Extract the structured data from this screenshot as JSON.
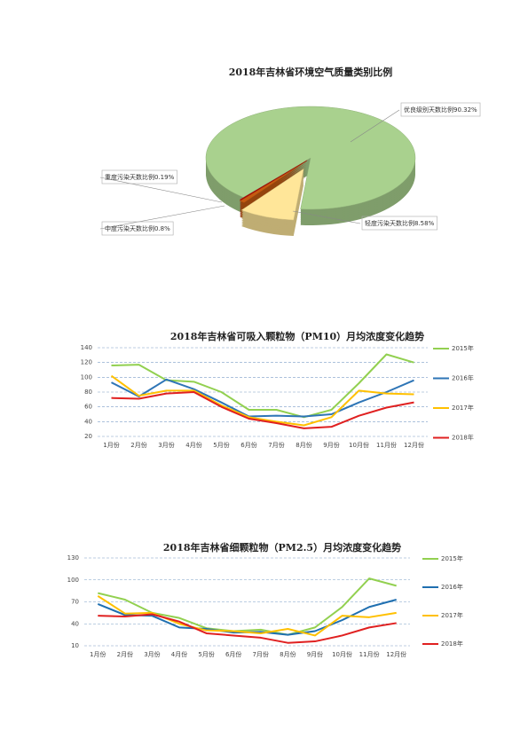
{
  "chart_data": [
    {
      "type": "pie",
      "title": "2018年吉林省环境空气质量类别比例",
      "categories": [
        "优良级别天数比例",
        "轻度污染天数比例",
        "中度污染天数比例",
        "重度污染天数比例"
      ],
      "values": [
        90.32,
        8.58,
        0.8,
        0.19
      ],
      "value_labels": [
        "90.32%",
        "8.58%",
        "0.8%",
        "0.19%"
      ],
      "colors": [
        "#a9d18e",
        "#ffe699",
        "#c55a11",
        "#c00000"
      ]
    },
    {
      "type": "line",
      "title": "2018年吉林省可吸入颗粒物（PM10）月均浓度变化趋势",
      "categories": [
        "1月份",
        "2月份",
        "3月份",
        "4月份",
        "5月份",
        "6月份",
        "7月份",
        "8月份",
        "9月份",
        "10月份",
        "11月份",
        "12月份"
      ],
      "ylim": [
        20,
        140
      ],
      "yticks": [
        20,
        40,
        60,
        80,
        100,
        120,
        140
      ],
      "grid": true,
      "series": [
        {
          "name": "2015年",
          "color": "#92d050",
          "values": [
            116,
            117,
            96,
            94,
            80,
            56,
            56,
            46,
            56,
            92,
            131,
            120
          ]
        },
        {
          "name": "2016年",
          "color": "#2e75b6",
          "values": [
            93,
            74,
            97,
            84,
            66,
            47,
            48,
            47,
            50,
            66,
            80,
            96
          ]
        },
        {
          "name": "2017年",
          "color": "#ffc000",
          "values": [
            102,
            75,
            82,
            82,
            62,
            46,
            40,
            35,
            46,
            82,
            78,
            77
          ]
        },
        {
          "name": "2018年",
          "color": "#e02020",
          "values": [
            72,
            71,
            78,
            80,
            60,
            44,
            38,
            31,
            33,
            48,
            59,
            66
          ]
        }
      ]
    },
    {
      "type": "line",
      "title": "2018年吉林省细颗粒物（PM2.5）月均浓度变化趋势",
      "categories": [
        "1月份",
        "2月份",
        "3月份",
        "4月份",
        "5月份",
        "6月份",
        "7月份",
        "8月份",
        "9月份",
        "10月份",
        "11月份",
        "12月份"
      ],
      "ylim": [
        10,
        130
      ],
      "yticks": [
        10,
        40,
        70,
        100,
        130
      ],
      "grid": true,
      "series": [
        {
          "name": "2015年",
          "color": "#92d050",
          "values": [
            82,
            73,
            55,
            48,
            34,
            30,
            32,
            25,
            35,
            63,
            102,
            92
          ]
        },
        {
          "name": "2016年",
          "color": "#1f6fb0",
          "values": [
            67,
            52,
            51,
            35,
            33,
            28,
            29,
            25,
            30,
            45,
            63,
            73
          ]
        },
        {
          "name": "2017年",
          "color": "#ffc000",
          "values": [
            78,
            54,
            55,
            40,
            31,
            30,
            27,
            33,
            24,
            51,
            49,
            55
          ]
        },
        {
          "name": "2018年",
          "color": "#e02020",
          "values": [
            51,
            50,
            53,
            43,
            27,
            24,
            21,
            14,
            16,
            24,
            35,
            41
          ]
        }
      ]
    }
  ]
}
